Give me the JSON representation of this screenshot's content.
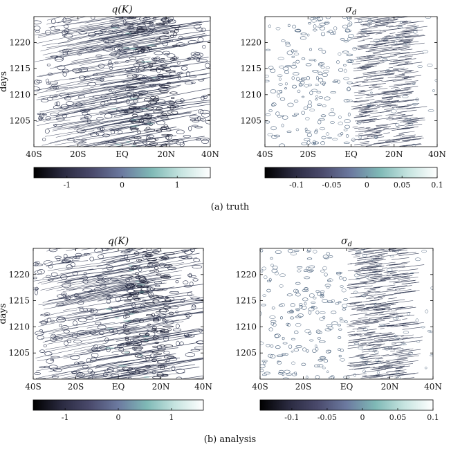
{
  "captions": {
    "truth": "(a) truth",
    "analysis": "(b) analysis"
  },
  "colormap": [
    "#000000",
    "#2a2a40",
    "#4a4a6c",
    "#6c7aa0",
    "#7fb9b6",
    "#c6e4e0",
    "#ffffff"
  ],
  "contour_color": "#2e3550",
  "contour_color_light": "#4f6680",
  "chart_data": [
    {
      "id": "truth-q",
      "type": "heatmap",
      "title": "q(K)",
      "ylabel": "days",
      "xlabel": "",
      "x_ticks": [
        "40S",
        "20S",
        "EQ",
        "20N",
        "40N"
      ],
      "x_tick_values": [
        -40,
        -20,
        0,
        20,
        40
      ],
      "xlim": [
        -40,
        40
      ],
      "y_ticks": [
        "1205",
        "1210",
        "1215",
        "1220"
      ],
      "y_tick_values": [
        1205,
        1210,
        1215,
        1220
      ],
      "ylim": [
        1200,
        1225
      ],
      "colorbar_ticks": [
        "-1",
        "0",
        "1"
      ],
      "colorbar_tick_values": [
        -1,
        0,
        1
      ],
      "colorbar_range": [
        -1.6,
        1.6
      ],
      "field": "q"
    },
    {
      "id": "truth-sigma",
      "type": "heatmap",
      "title": "σd",
      "title_main": "σ",
      "title_sub": "d",
      "xlabel": "",
      "x_ticks": [
        "40S",
        "20S",
        "EQ",
        "20N",
        "40N"
      ],
      "x_tick_values": [
        -40,
        -20,
        0,
        20,
        40
      ],
      "xlim": [
        -40,
        40
      ],
      "y_ticks": [
        "1205",
        "1210",
        "1215",
        "1220"
      ],
      "y_tick_values": [
        1205,
        1210,
        1215,
        1220
      ],
      "ylim": [
        1200,
        1225
      ],
      "colorbar_ticks": [
        "-0.1",
        "-0.05",
        "0",
        "0.05",
        "0.1"
      ],
      "colorbar_tick_values": [
        -0.1,
        -0.05,
        0,
        0.05,
        0.1
      ],
      "colorbar_range": [
        -0.145,
        0.1
      ],
      "field": "sigma"
    },
    {
      "id": "analysis-q",
      "type": "heatmap",
      "title": "q(K)",
      "ylabel": "days",
      "xlabel": "",
      "x_ticks": [
        "40S",
        "20S",
        "EQ",
        "20N",
        "40N"
      ],
      "x_tick_values": [
        -40,
        -20,
        0,
        20,
        40
      ],
      "xlim": [
        -40,
        40
      ],
      "y_ticks": [
        "1205",
        "1210",
        "1215",
        "1220"
      ],
      "y_tick_values": [
        1205,
        1210,
        1215,
        1220
      ],
      "ylim": [
        1200,
        1225
      ],
      "colorbar_ticks": [
        "-1",
        "0",
        "1"
      ],
      "colorbar_tick_values": [
        -1,
        0,
        1
      ],
      "colorbar_range": [
        -1.6,
        1.6
      ],
      "field": "q"
    },
    {
      "id": "analysis-sigma",
      "type": "heatmap",
      "title": "σd",
      "title_main": "σ",
      "title_sub": "d",
      "xlabel": "",
      "x_ticks": [
        "40S",
        "20S",
        "EQ",
        "20N",
        "40N"
      ],
      "x_tick_values": [
        -40,
        -20,
        0,
        20,
        40
      ],
      "xlim": [
        -40,
        40
      ],
      "y_ticks": [
        "1205",
        "1210",
        "1215",
        "1220"
      ],
      "y_tick_values": [
        1205,
        1210,
        1215,
        1220
      ],
      "ylim": [
        1200,
        1225
      ],
      "colorbar_ticks": [
        "-0.1",
        "-0.05",
        "0",
        "0.05",
        "0.1"
      ],
      "colorbar_tick_values": [
        -0.1,
        -0.05,
        0,
        0.05,
        0.1
      ],
      "colorbar_range": [
        -0.145,
        0.1
      ],
      "field": "sigma"
    }
  ]
}
